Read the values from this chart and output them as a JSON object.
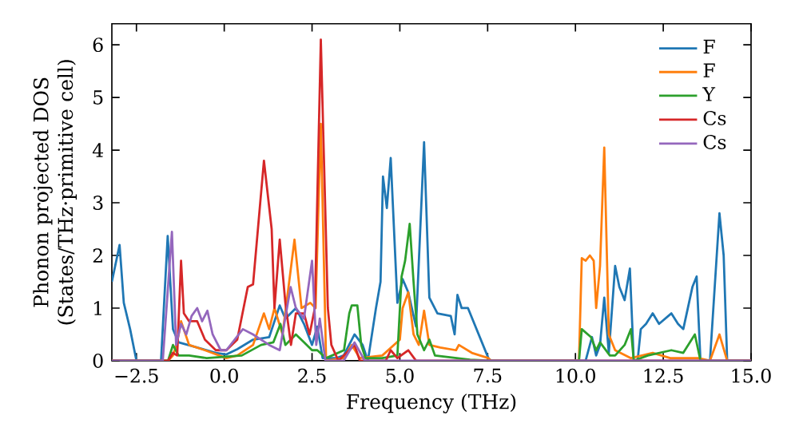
{
  "chart_data": {
    "type": "line",
    "xlabel": "Frequency (THz)",
    "ylabel": "Phonon projected DOS (States/THz·primitive cell)",
    "xlim": [
      -3.2,
      15.0
    ],
    "ylim": [
      0,
      6.4
    ],
    "xticks": [
      {
        "value": -2.5,
        "label": "−2.5"
      },
      {
        "value": 0,
        "label": "0.0"
      },
      2.5,
      {
        "value": 5,
        "label": "5.0"
      },
      7.5,
      {
        "value": 10,
        "label": "10.0"
      },
      12.5,
      {
        "value": 15,
        "label": "15.0"
      }
    ],
    "yticks": [
      0,
      1,
      2,
      3,
      4,
      5,
      6
    ],
    "legend": "top right",
    "series": [
      {
        "name": "F",
        "color": "#1f77b4",
        "x": [
          -3.2,
          -2.98,
          -2.86,
          -2.68,
          -2.5,
          -1.8,
          -1.61,
          -1.46,
          -1.3,
          -0.77,
          -0.24,
          0.06,
          0.37,
          0.82,
          1.28,
          1.58,
          1.74,
          2.04,
          2.27,
          2.5,
          2.65,
          2.8,
          3.2,
          3.4,
          3.71,
          3.94,
          4.09,
          4.32,
          4.45,
          4.52,
          4.63,
          4.74,
          4.93,
          5.08,
          5.24,
          5.46,
          5.69,
          5.84,
          6.07,
          6.45,
          6.56,
          6.64,
          6.76,
          6.94,
          7.52,
          7.6,
          9.0,
          10.29,
          10.47,
          10.59,
          10.7,
          10.82,
          10.95,
          11.13,
          11.25,
          11.4,
          11.55,
          11.66,
          11.77,
          11.86,
          12.01,
          12.2,
          12.38,
          12.73,
          12.92,
          13.07,
          13.33,
          13.45,
          13.56,
          13.83,
          14.1,
          14.22,
          14.32,
          15.0
        ],
        "values": [
          1.5,
          2.2,
          1.1,
          0.6,
          0,
          0,
          2.37,
          0.6,
          0.35,
          0.25,
          0.15,
          0.12,
          0.22,
          0.4,
          0.45,
          1.05,
          0.8,
          1.0,
          0.7,
          0.3,
          0.65,
          0.05,
          0.05,
          0.1,
          0.5,
          0.3,
          0,
          1.0,
          1.5,
          3.5,
          2.9,
          3.85,
          1.1,
          1.55,
          1.3,
          0.65,
          4.15,
          1.2,
          0.9,
          0.85,
          0.5,
          1.25,
          1.0,
          1.0,
          0.05,
          0,
          0,
          0,
          0.45,
          0.1,
          0.3,
          1.2,
          0.15,
          1.8,
          1.4,
          1.15,
          1.75,
          0,
          0,
          0.6,
          0.7,
          0.9,
          0.7,
          0.9,
          0.7,
          0.6,
          1.4,
          1.6,
          0,
          0,
          2.8,
          2.0,
          0,
          0
        ]
      },
      {
        "name": "F",
        "color": "#ff7f0e",
        "x": [
          -3.2,
          -1.6,
          -1.46,
          -1.34,
          -1.23,
          -1.0,
          -0.55,
          0.06,
          0.37,
          0.82,
          1.13,
          1.28,
          1.43,
          1.66,
          2.0,
          2.2,
          2.45,
          2.6,
          2.75,
          2.9,
          3.4,
          3.63,
          3.86,
          4.5,
          5.0,
          5.08,
          5.24,
          5.39,
          5.54,
          5.69,
          5.84,
          6.15,
          6.6,
          6.68,
          7.05,
          7.52,
          7.6,
          10.1,
          10.18,
          10.29,
          10.41,
          10.52,
          10.59,
          10.7,
          10.82,
          10.95,
          11.13,
          11.58,
          12.2,
          12.7,
          13.5,
          13.83,
          14.1,
          14.32,
          15.0
        ],
        "values": [
          0,
          0,
          0.1,
          0.35,
          0.75,
          0.3,
          0.2,
          0.05,
          0.1,
          0.3,
          0.9,
          0.6,
          1.0,
          0.5,
          2.3,
          1.0,
          1.1,
          1.0,
          4.5,
          0,
          0.05,
          0.3,
          0.05,
          0.1,
          0.4,
          1.0,
          1.3,
          0.5,
          0.3,
          0.95,
          0.3,
          0.25,
          0.2,
          0.3,
          0.15,
          0.05,
          0,
          0,
          1.95,
          1.9,
          2.0,
          1.9,
          1.0,
          1.8,
          4.05,
          0.5,
          0.2,
          0.05,
          0.15,
          0.05,
          0.05,
          0,
          0.5,
          0,
          0
        ]
      },
      {
        "name": "Y",
        "color": "#2ca02c",
        "x": [
          -3.2,
          -1.6,
          -1.46,
          -1.3,
          -1.0,
          -0.5,
          0.5,
          1.05,
          1.4,
          1.6,
          1.74,
          2.04,
          2.27,
          2.5,
          2.65,
          2.9,
          3.41,
          3.56,
          3.63,
          3.79,
          3.9,
          4.02,
          4.5,
          4.93,
          5.05,
          5.15,
          5.28,
          5.39,
          5.5,
          5.69,
          5.84,
          6.0,
          7.0,
          7.6,
          10.1,
          10.18,
          10.44,
          10.59,
          10.7,
          10.98,
          11.13,
          11.4,
          11.58,
          11.66,
          12.06,
          12.73,
          13.07,
          13.4,
          13.56,
          15.0
        ],
        "values": [
          0,
          0,
          0.3,
          0.1,
          0.1,
          0.05,
          0.1,
          0.3,
          0.35,
          0.7,
          0.3,
          0.5,
          0.35,
          0.2,
          0.2,
          0.05,
          0.2,
          0.9,
          1.05,
          1.05,
          0.3,
          0.05,
          0.05,
          0.1,
          1.6,
          1.9,
          2.6,
          1.5,
          0.5,
          0.2,
          0.4,
          0.1,
          0.02,
          0,
          0,
          0.6,
          0.45,
          0.2,
          0.35,
          0.1,
          0.1,
          0.3,
          0.6,
          0,
          0.1,
          0.2,
          0.15,
          0.5,
          0,
          0
        ]
      },
      {
        "name": "Cs",
        "color": "#d62728",
        "x": [
          -3.2,
          -1.6,
          -1.46,
          -1.34,
          -1.23,
          -1.15,
          -1.0,
          -0.77,
          -0.55,
          -0.24,
          0.06,
          0.37,
          0.67,
          0.82,
          1.13,
          1.35,
          1.43,
          1.58,
          1.74,
          1.9,
          2.04,
          2.27,
          2.43,
          2.58,
          2.75,
          2.95,
          3.05,
          3.25,
          3.71,
          3.86,
          4.6,
          4.74,
          4.93,
          5.24,
          5.46,
          7.0,
          15.0
        ],
        "values": [
          0,
          0,
          0.15,
          0.1,
          1.9,
          0.9,
          0.75,
          0.75,
          0.4,
          0.2,
          0.2,
          0.4,
          1.4,
          1.45,
          3.8,
          2.5,
          1.0,
          2.3,
          1.1,
          0.3,
          0.9,
          0.9,
          0.5,
          1.0,
          6.1,
          1.0,
          0.3,
          0,
          0.3,
          0,
          0,
          0.2,
          0.05,
          0.2,
          0,
          0,
          0
        ]
      },
      {
        "name": "Cs",
        "color": "#9467bd",
        "x": [
          -3.2,
          -1.75,
          -1.49,
          -1.37,
          -1.23,
          -1.08,
          -0.93,
          -0.77,
          -0.63,
          -0.48,
          -0.33,
          -0.1,
          0.06,
          0.53,
          0.82,
          1.28,
          1.58,
          1.89,
          2.04,
          2.27,
          2.5,
          2.62,
          2.72,
          2.88,
          3.4,
          3.71,
          4.0,
          15.0
        ],
        "values": [
          0,
          0,
          2.45,
          0.3,
          0.7,
          0.5,
          0.85,
          1.0,
          0.75,
          0.95,
          0.5,
          0.2,
          0.2,
          0.6,
          0.5,
          0.3,
          0.2,
          1.4,
          1.0,
          0.8,
          1.9,
          0.3,
          0.8,
          0,
          0,
          0.35,
          0,
          0
        ]
      }
    ]
  }
}
